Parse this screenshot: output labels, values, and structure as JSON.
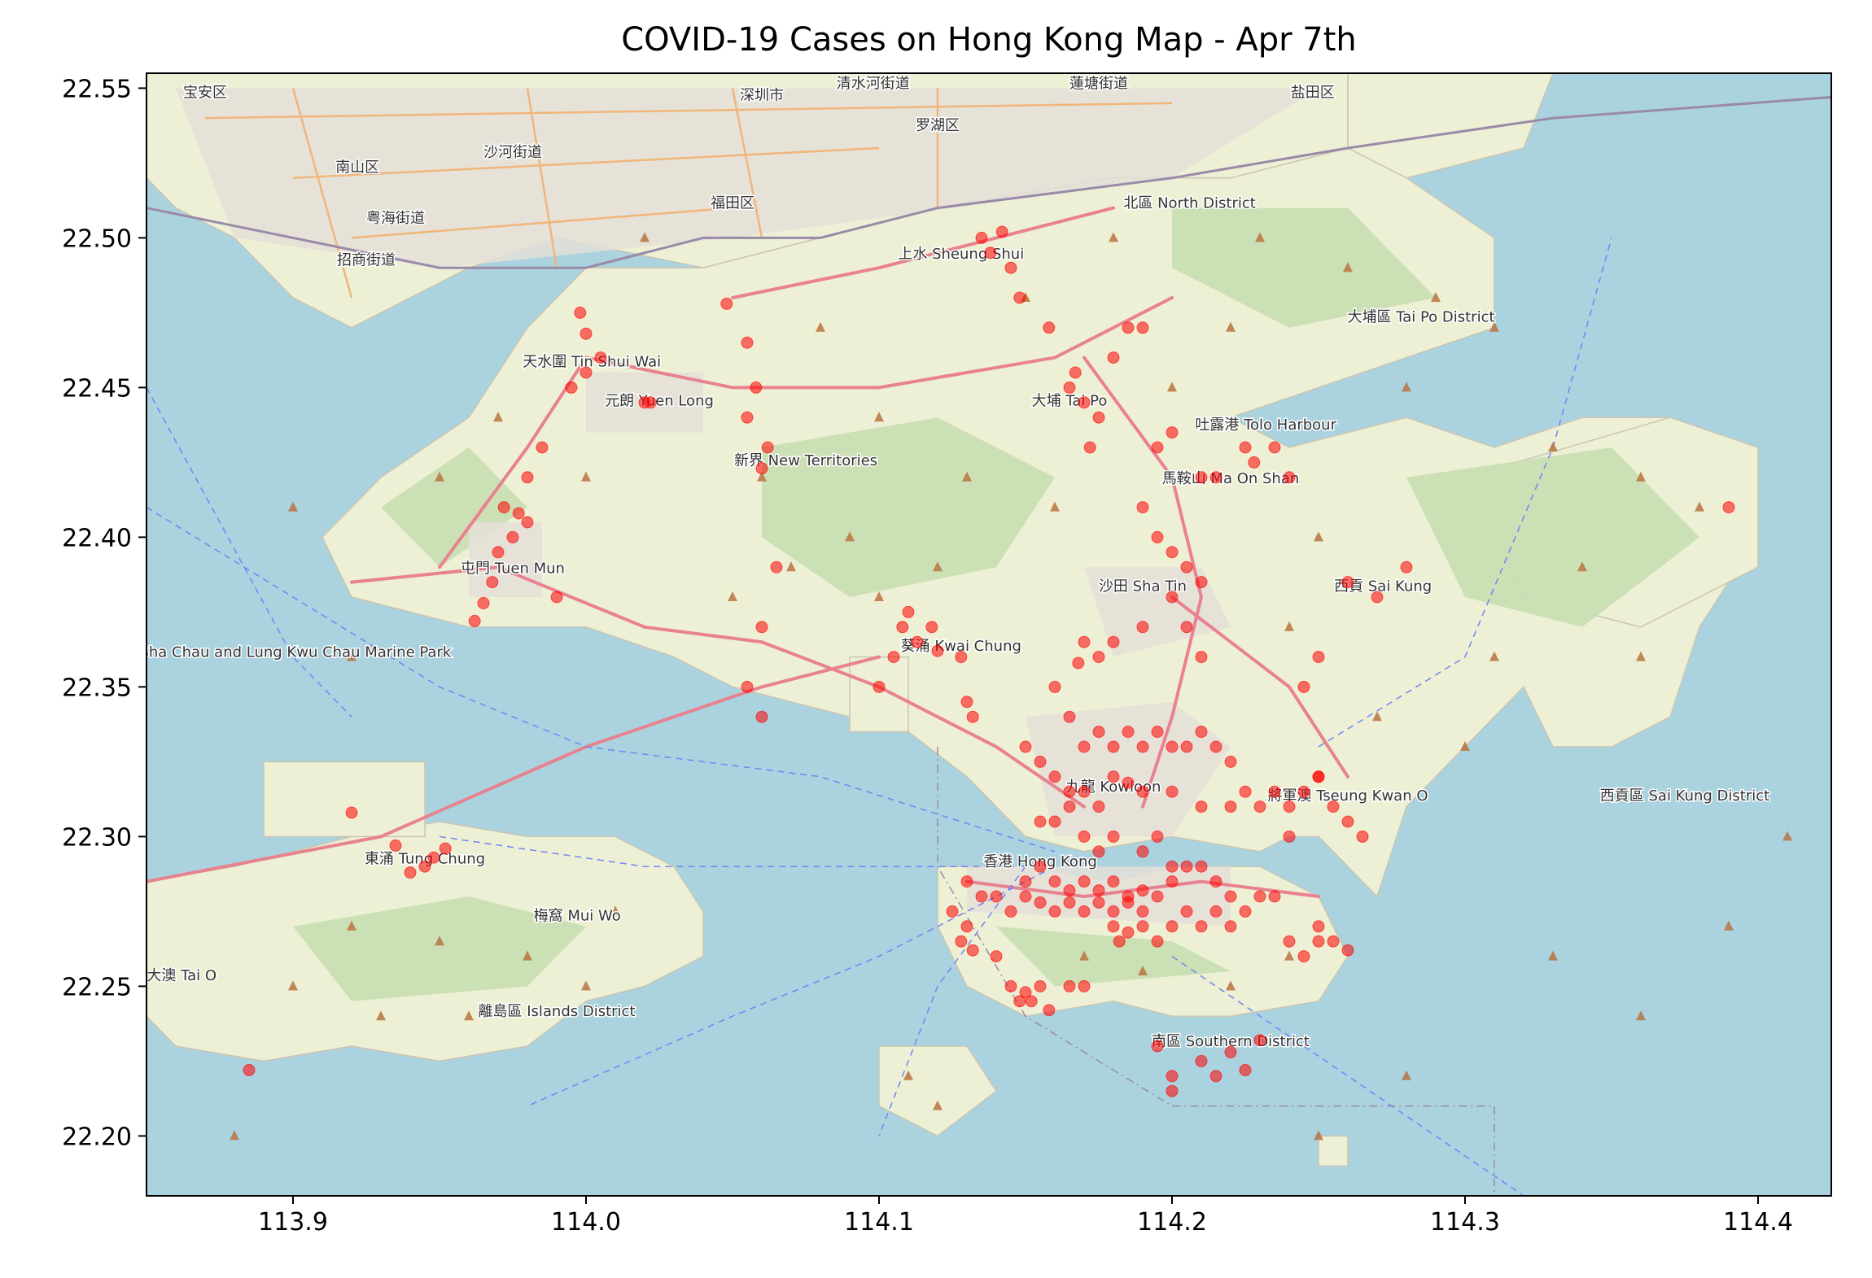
{
  "title": "COVID-19 Cases on Hong Kong Map - Apr 7th",
  "colors": {
    "sea": "#aad3df",
    "land": "#eef0d5",
    "park": "#c8deb2",
    "urban": "#e4dfd8",
    "road": "#e8828f",
    "motorway": "#f0b57a",
    "border": "#9a8aa8",
    "ferry": "#6f86f5",
    "peak": "#b8733f",
    "case": "#ff0000",
    "axis": "#000000"
  },
  "chart_data": {
    "type": "scatter",
    "xlabel": "",
    "ylabel": "",
    "xlim": [
      113.85,
      114.425
    ],
    "ylim": [
      22.18,
      22.555
    ],
    "xticks": [
      "113.9",
      "114.0",
      "114.1",
      "114.2",
      "114.3",
      "114.4"
    ],
    "yticks": [
      "22.20",
      "22.25",
      "22.30",
      "22.35",
      "22.40",
      "22.45",
      "22.50",
      "22.55"
    ],
    "series": [
      {
        "marker": "circle",
        "points": [
          [
            113.92,
            22.308
          ],
          [
            113.935,
            22.297
          ],
          [
            113.948,
            22.293
          ],
          [
            113.952,
            22.296
          ],
          [
            113.945,
            22.29
          ],
          [
            113.94,
            22.288
          ],
          [
            113.965,
            22.378
          ],
          [
            113.968,
            22.385
          ],
          [
            113.972,
            22.41
          ],
          [
            113.977,
            22.408
          ],
          [
            113.975,
            22.4
          ],
          [
            113.97,
            22.395
          ],
          [
            113.98,
            22.42
          ],
          [
            113.985,
            22.43
          ],
          [
            113.98,
            22.405
          ],
          [
            113.99,
            22.38
          ],
          [
            113.962,
            22.372
          ],
          [
            113.995,
            22.45
          ],
          [
            114.0,
            22.455
          ],
          [
            114.005,
            22.46
          ],
          [
            113.998,
            22.475
          ],
          [
            114.0,
            22.468
          ],
          [
            114.02,
            22.445
          ],
          [
            114.022,
            22.445
          ],
          [
            114.048,
            22.478
          ],
          [
            114.055,
            22.465
          ],
          [
            114.058,
            22.45
          ],
          [
            114.055,
            22.44
          ],
          [
            114.062,
            22.43
          ],
          [
            114.06,
            22.423
          ],
          [
            114.065,
            22.39
          ],
          [
            114.06,
            22.37
          ],
          [
            114.055,
            22.35
          ],
          [
            114.06,
            22.34
          ],
          [
            114.1,
            22.35
          ],
          [
            114.105,
            22.36
          ],
          [
            114.108,
            22.37
          ],
          [
            114.11,
            22.375
          ],
          [
            114.113,
            22.365
          ],
          [
            114.118,
            22.37
          ],
          [
            114.13,
            22.345
          ],
          [
            114.132,
            22.34
          ],
          [
            114.128,
            22.36
          ],
          [
            114.12,
            22.362
          ],
          [
            114.135,
            22.5
          ],
          [
            114.138,
            22.495
          ],
          [
            114.142,
            22.502
          ],
          [
            114.148,
            22.48
          ],
          [
            114.145,
            22.49
          ],
          [
            114.158,
            22.47
          ],
          [
            114.165,
            22.45
          ],
          [
            114.167,
            22.455
          ],
          [
            114.17,
            22.445
          ],
          [
            114.175,
            22.44
          ],
          [
            114.172,
            22.43
          ],
          [
            114.18,
            22.46
          ],
          [
            114.185,
            22.47
          ],
          [
            114.19,
            22.47
          ],
          [
            114.2,
            22.435
          ],
          [
            114.195,
            22.43
          ],
          [
            114.21,
            22.42
          ],
          [
            114.215,
            22.42
          ],
          [
            114.225,
            22.43
          ],
          [
            114.228,
            22.425
          ],
          [
            114.235,
            22.43
          ],
          [
            114.24,
            22.42
          ],
          [
            114.19,
            22.41
          ],
          [
            114.195,
            22.4
          ],
          [
            114.2,
            22.395
          ],
          [
            114.205,
            22.39
          ],
          [
            114.2,
            22.38
          ],
          [
            114.21,
            22.385
          ],
          [
            114.205,
            22.37
          ],
          [
            114.21,
            22.36
          ],
          [
            114.19,
            22.37
          ],
          [
            114.18,
            22.365
          ],
          [
            114.175,
            22.36
          ],
          [
            114.17,
            22.365
          ],
          [
            114.168,
            22.358
          ],
          [
            114.26,
            22.385
          ],
          [
            114.27,
            22.38
          ],
          [
            114.28,
            22.39
          ],
          [
            114.39,
            22.41
          ],
          [
            114.25,
            22.36
          ],
          [
            114.245,
            22.35
          ],
          [
            114.25,
            22.32
          ],
          [
            114.16,
            22.35
          ],
          [
            114.165,
            22.34
          ],
          [
            114.17,
            22.33
          ],
          [
            114.175,
            22.335
          ],
          [
            114.18,
            22.33
          ],
          [
            114.185,
            22.335
          ],
          [
            114.19,
            22.33
          ],
          [
            114.195,
            22.335
          ],
          [
            114.2,
            22.33
          ],
          [
            114.205,
            22.33
          ],
          [
            114.21,
            22.335
          ],
          [
            114.215,
            22.33
          ],
          [
            114.22,
            22.325
          ],
          [
            114.15,
            22.33
          ],
          [
            114.155,
            22.325
          ],
          [
            114.16,
            22.32
          ],
          [
            114.165,
            22.315
          ],
          [
            114.17,
            22.315
          ],
          [
            114.175,
            22.31
          ],
          [
            114.18,
            22.32
          ],
          [
            114.185,
            22.318
          ],
          [
            114.19,
            22.315
          ],
          [
            114.2,
            22.315
          ],
          [
            114.21,
            22.31
          ],
          [
            114.22,
            22.31
          ],
          [
            114.225,
            22.315
          ],
          [
            114.23,
            22.31
          ],
          [
            114.235,
            22.315
          ],
          [
            114.24,
            22.31
          ],
          [
            114.245,
            22.315
          ],
          [
            114.25,
            22.32
          ],
          [
            114.255,
            22.31
          ],
          [
            114.26,
            22.305
          ],
          [
            114.265,
            22.3
          ],
          [
            114.24,
            22.3
          ],
          [
            114.155,
            22.305
          ],
          [
            114.16,
            22.305
          ],
          [
            114.165,
            22.31
          ],
          [
            114.17,
            22.3
          ],
          [
            114.175,
            22.295
          ],
          [
            114.18,
            22.3
          ],
          [
            114.19,
            22.295
          ],
          [
            114.195,
            22.3
          ],
          [
            114.2,
            22.29
          ],
          [
            114.205,
            22.29
          ],
          [
            114.21,
            22.29
          ],
          [
            114.215,
            22.285
          ],
          [
            114.22,
            22.28
          ],
          [
            114.13,
            22.285
          ],
          [
            114.135,
            22.28
          ],
          [
            114.14,
            22.28
          ],
          [
            114.145,
            22.275
          ],
          [
            114.15,
            22.28
          ],
          [
            114.155,
            22.278
          ],
          [
            114.16,
            22.275
          ],
          [
            114.165,
            22.278
          ],
          [
            114.17,
            22.275
          ],
          [
            114.175,
            22.278
          ],
          [
            114.18,
            22.275
          ],
          [
            114.185,
            22.278
          ],
          [
            114.19,
            22.275
          ],
          [
            114.195,
            22.28
          ],
          [
            114.2,
            22.285
          ],
          [
            114.15,
            22.285
          ],
          [
            114.155,
            22.29
          ],
          [
            114.16,
            22.285
          ],
          [
            114.165,
            22.282
          ],
          [
            114.17,
            22.285
          ],
          [
            114.175,
            22.282
          ],
          [
            114.18,
            22.285
          ],
          [
            114.185,
            22.28
          ],
          [
            114.19,
            22.282
          ],
          [
            114.18,
            22.27
          ],
          [
            114.182,
            22.265
          ],
          [
            114.185,
            22.268
          ],
          [
            114.19,
            22.27
          ],
          [
            114.195,
            22.265
          ],
          [
            114.2,
            22.27
          ],
          [
            114.205,
            22.275
          ],
          [
            114.21,
            22.27
          ],
          [
            114.215,
            22.275
          ],
          [
            114.22,
            22.27
          ],
          [
            114.225,
            22.275
          ],
          [
            114.23,
            22.28
          ],
          [
            114.235,
            22.28
          ],
          [
            114.13,
            22.27
          ],
          [
            114.132,
            22.262
          ],
          [
            114.128,
            22.265
          ],
          [
            114.14,
            22.26
          ],
          [
            114.125,
            22.275
          ],
          [
            114.145,
            22.25
          ],
          [
            114.148,
            22.245
          ],
          [
            114.15,
            22.248
          ],
          [
            114.152,
            22.245
          ],
          [
            114.155,
            22.25
          ],
          [
            114.158,
            22.242
          ],
          [
            114.165,
            22.25
          ],
          [
            114.17,
            22.25
          ],
          [
            114.24,
            22.265
          ],
          [
            114.245,
            22.26
          ],
          [
            114.25,
            22.265
          ],
          [
            114.255,
            22.265
          ],
          [
            114.26,
            22.262
          ],
          [
            114.25,
            22.27
          ],
          [
            114.195,
            22.23
          ],
          [
            114.2,
            22.22
          ],
          [
            114.21,
            22.225
          ],
          [
            114.215,
            22.22
          ],
          [
            114.22,
            22.228
          ],
          [
            114.225,
            22.222
          ],
          [
            114.23,
            22.232
          ],
          [
            114.2,
            22.215
          ],
          [
            113.885,
            22.222
          ]
        ]
      }
    ]
  },
  "places": [
    {
      "name": "宝安区",
      "lon": 113.87,
      "lat": 22.547
    },
    {
      "name": "南山区",
      "lon": 113.922,
      "lat": 22.522
    },
    {
      "name": "粤海街道",
      "lon": 113.935,
      "lat": 22.505
    },
    {
      "name": "招商街道",
      "lon": 113.925,
      "lat": 22.491
    },
    {
      "name": "沙河街道",
      "lon": 113.975,
      "lat": 22.527
    },
    {
      "name": "深圳市",
      "lon": 114.06,
      "lat": 22.546
    },
    {
      "name": "福田区",
      "lon": 114.05,
      "lat": 22.51
    },
    {
      "name": "罗湖区",
      "lon": 114.12,
      "lat": 22.536
    },
    {
      "name": "清水河街道",
      "lon": 114.098,
      "lat": 22.55
    },
    {
      "name": "蓮塘街道",
      "lon": 114.175,
      "lat": 22.55
    },
    {
      "name": "盐田区",
      "lon": 114.248,
      "lat": 22.547
    },
    {
      "name": "北區 North District",
      "lon": 114.206,
      "lat": 22.51
    },
    {
      "name": "上水 Sheung Shui",
      "lon": 114.128,
      "lat": 22.493
    },
    {
      "name": "大埔區 Tai Po District",
      "lon": 114.285,
      "lat": 22.472
    },
    {
      "name": "天水圍 Tin Shui Wai",
      "lon": 114.002,
      "lat": 22.457
    },
    {
      "name": "元朗 Yuen Long",
      "lon": 114.025,
      "lat": 22.444
    },
    {
      "name": "新界 New Territories",
      "lon": 114.075,
      "lat": 22.424
    },
    {
      "name": "大埔 Tai Po",
      "lon": 114.165,
      "lat": 22.444
    },
    {
      "name": "吐露港 Tolo Harbour",
      "lon": 114.232,
      "lat": 22.436
    },
    {
      "name": "馬鞍山 Ma On Shan",
      "lon": 114.22,
      "lat": 22.418
    },
    {
      "name": "屯門 Tuen Mun",
      "lon": 113.975,
      "lat": 22.388
    },
    {
      "name": "沙田 Sha Tin",
      "lon": 114.19,
      "lat": 22.382
    },
    {
      "name": "西貢 Sai Kung",
      "lon": 114.272,
      "lat": 22.382
    },
    {
      "name": "葵涌 Kwai Chung",
      "lon": 114.128,
      "lat": 22.362
    },
    {
      "name": "沙洲及龍鼓洲海岸公園 Sha Chau and Lung Kwu Chau Marine Park",
      "lon": 113.875,
      "lat": 22.36
    },
    {
      "name": "九龍 Kowloon",
      "lon": 114.18,
      "lat": 22.315
    },
    {
      "name": "將軍澳 Tseung Kwan O",
      "lon": 114.26,
      "lat": 22.312
    },
    {
      "name": "西貢區 Sai Kung District",
      "lon": 114.375,
      "lat": 22.312
    },
    {
      "name": "香港 Hong Kong",
      "lon": 114.155,
      "lat": 22.29
    },
    {
      "name": "東涌 Tung Chung",
      "lon": 113.945,
      "lat": 22.291
    },
    {
      "name": "梅窩 Mui Wo",
      "lon": 113.997,
      "lat": 22.272
    },
    {
      "name": "大澳 Tai O",
      "lon": 113.862,
      "lat": 22.252
    },
    {
      "name": "離島區 Islands District",
      "lon": 113.99,
      "lat": 22.24
    },
    {
      "name": "南區 Southern District",
      "lon": 114.22,
      "lat": 22.23
    }
  ]
}
